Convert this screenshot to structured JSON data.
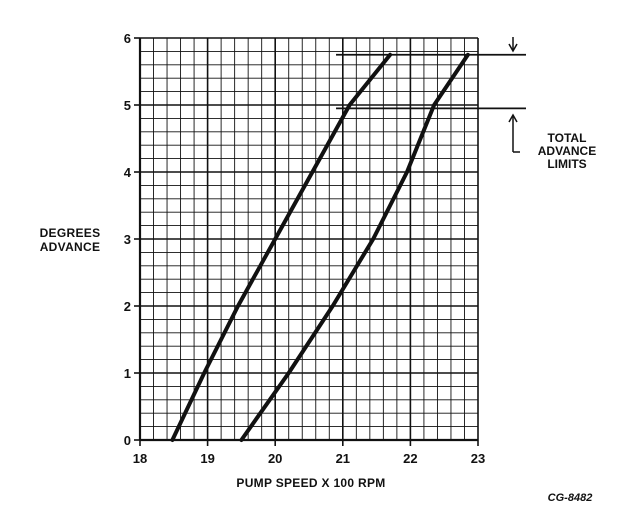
{
  "chart_data": {
    "type": "line",
    "xlabel": "PUMP SPEED X 100 RPM",
    "ylabel_lines": [
      "DEGREES",
      "ADVANCE"
    ],
    "xlim": [
      18,
      23
    ],
    "ylim": [
      0,
      6
    ],
    "x_ticks": [
      "18",
      "19",
      "20",
      "21",
      "22",
      "23"
    ],
    "y_ticks": [
      "0",
      "1",
      "2",
      "3",
      "4",
      "5",
      "6"
    ],
    "grid": true,
    "minor_grid_per_unit": 5,
    "series": [
      {
        "x": [
          18.48,
          18.95,
          19.45,
          20.0,
          20.55,
          21.1,
          21.7
        ],
        "y": [
          0,
          1,
          2,
          3,
          4,
          5,
          5.75
        ]
      },
      {
        "x": [
          19.5,
          20.2,
          20.85,
          21.45,
          21.95,
          22.35,
          22.85
        ],
        "y": [
          0,
          1,
          2,
          3,
          4,
          5,
          5.75
        ]
      }
    ],
    "limit_lines": [
      5.75,
      4.95
    ],
    "annotation_lines": [
      "TOTAL",
      "ADVANCE",
      "LIMITS"
    ],
    "figure_id": "CG-8482",
    "color": "#111111"
  }
}
